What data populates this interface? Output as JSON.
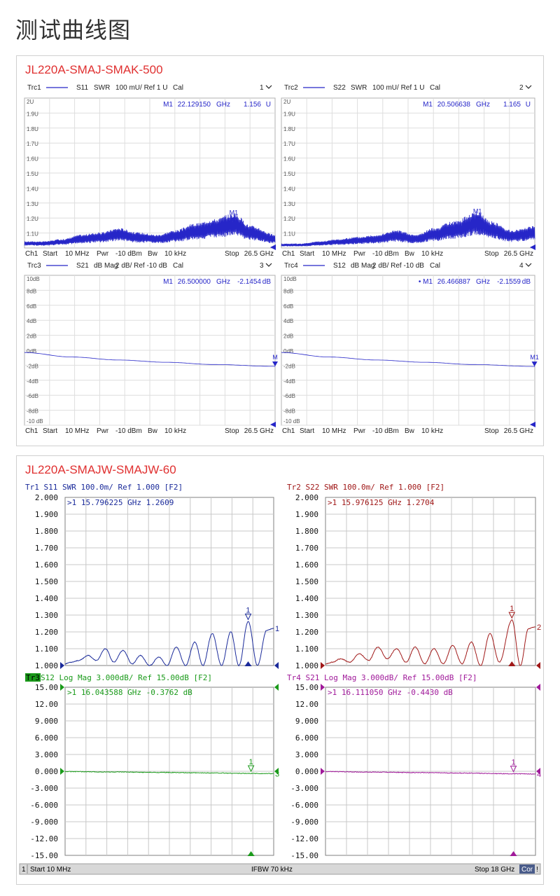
{
  "page_title": "测试曲线图",
  "cards": [
    {
      "title": "JL220A-SMAJ-SMAK-500"
    },
    {
      "title": "JL220A-SMAJW-SMAJW-60"
    }
  ],
  "colors": {
    "trace_blue": "#2626c8",
    "trace_darkblue": "#1a2a9a",
    "trace_red": "#a01818",
    "trace_green": "#1a9a1a",
    "trace_purple": "#a01a9a",
    "title_red": "#e03030"
  },
  "set1": {
    "footer": {
      "ch": "Ch1",
      "start": "Start",
      "start_val": "10 MHz",
      "pwr": "Pwr",
      "pwr_val": "-10 dBm",
      "bw": "Bw",
      "bw_val": "10 kHz",
      "stop": "Stop",
      "stop_val": "26.5 GHz"
    },
    "panels": [
      {
        "trc": "Trc1",
        "param": "S11",
        "fmt": "SWR",
        "scale": "100 mU/ Ref 1 U",
        "cal": "Cal",
        "num": "1",
        "marker_name": "M1",
        "marker_freq": "22.129150",
        "marker_unit": "GHz",
        "marker_val": "1.156",
        "marker_val_unit": "U",
        "marker_label": "M1",
        "ticks": [
          "2U",
          "1.9U",
          "1.8U",
          "1.7U",
          "1.6U",
          "1.5U",
          "1.4U",
          "1.3U",
          "1.2U",
          "1.1U"
        ]
      },
      {
        "trc": "Trc2",
        "param": "S22",
        "fmt": "SWR",
        "scale": "100 mU/ Ref 1 U",
        "cal": "Cal",
        "num": "2",
        "marker_name": "M1",
        "marker_freq": "20.506638",
        "marker_unit": "GHz",
        "marker_val": "1.165",
        "marker_val_unit": "U",
        "marker_label": "M1",
        "ticks": [
          "2U",
          "1.9U",
          "1.8U",
          "1.7U",
          "1.6U",
          "1.5U",
          "1.4U",
          "1.3U",
          "1.2U",
          "1.1U"
        ]
      },
      {
        "trc": "Trc3",
        "param": "S21",
        "fmt": "dB Mag",
        "scale": "2 dB/ Ref -10 dB",
        "cal": "Cal",
        "num": "3",
        "marker_name": "M1",
        "marker_freq": "26.500000",
        "marker_unit": "GHz",
        "marker_val": "-2.1454",
        "marker_val_unit": "dB",
        "marker_label": "M",
        "ticks": [
          "10dB",
          "8dB",
          "6dB",
          "4dB",
          "2dB",
          "0dB",
          "-2dB",
          "-4dB",
          "-6dB",
          "-8dB",
          "-10 dB"
        ]
      },
      {
        "trc": "Trc4",
        "param": "S12",
        "fmt": "dB Mag",
        "scale": "2 dB/ Ref -10 dB",
        "cal": "Cal",
        "num": "4",
        "marker_name": "• M1",
        "marker_freq": "26.466887",
        "marker_unit": "GHz",
        "marker_val": "-2.1559",
        "marker_val_unit": "dB",
        "marker_label": "M1",
        "ticks": [
          "10dB",
          "8dB",
          "6dB",
          "4dB",
          "2dB",
          "0dB",
          "-2dB",
          "-4dB",
          "-6dB",
          "-8dB",
          "-10 dB"
        ]
      }
    ]
  },
  "set2": {
    "status": {
      "num": "1",
      "start": "Start 10 MHz",
      "ifbw": "IFBW 70 kHz",
      "stop": "Stop 18 GHz",
      "cor": "Cor",
      "excl": "!"
    },
    "swr_ticks": [
      "2.000",
      "1.900",
      "1.800",
      "1.700",
      "1.600",
      "1.500",
      "1.400",
      "1.300",
      "1.200",
      "1.100",
      "1.000"
    ],
    "mag_ticks": [
      "15.00",
      "12.00",
      "9.000",
      "6.000",
      "3.000",
      "0.000",
      "-3.000",
      "-6.000",
      "-9.000",
      "-12.00",
      "-15.00"
    ],
    "panels": [
      {
        "header": "Tr1 S11 SWR 100.0m/ Ref 1.000 [F2]",
        "readout": ">1  15.796225 GHz  1.2609",
        "end_label": "1",
        "marker": "1"
      },
      {
        "header": "Tr2 S22 SWR 100.0m/ Ref 1.000 [F2]",
        "readout": ">1  15.976125 GHz  1.2704",
        "end_label": "2",
        "marker": "1"
      },
      {
        "header_tag": "Tr3",
        "header": " S12 Log Mag 3.000dB/ Ref 15.00dB [F2]",
        "readout": ">1  16.043588 GHz -0.3762 dB",
        "end_label": "3",
        "marker": "1"
      },
      {
        "header": "Tr4 S21 Log Mag 3.000dB/ Ref 15.00dB [F2]",
        "readout": ">1  16.111050 GHz -0.4430 dB",
        "end_label": "4",
        "marker": "1"
      }
    ]
  },
  "chart_data": [
    {
      "type": "line",
      "title": "",
      "panel": "Trc1 S11 SWR",
      "xlabel": "",
      "ylabel": "",
      "xlim_ghz": [
        0.01,
        26.5
      ],
      "ylim": [
        1.0,
        2.0
      ],
      "series": [
        {
          "name": "S11",
          "x": [
            0.01,
            2,
            4,
            6,
            8,
            10,
            12,
            14,
            16,
            18,
            20,
            22.13,
            24,
            26.5
          ],
          "y": [
            1.03,
            1.03,
            1.04,
            1.06,
            1.07,
            1.09,
            1.07,
            1.06,
            1.08,
            1.11,
            1.13,
            1.156,
            1.1,
            1.06
          ]
        }
      ],
      "marker": {
        "x": 22.12915,
        "y": 1.156
      }
    },
    {
      "type": "line",
      "title": "",
      "panel": "Trc2 S22 SWR",
      "xlabel": "",
      "ylabel": "",
      "xlim_ghz": [
        0.01,
        26.5
      ],
      "ylim": [
        1.0,
        2.0
      ],
      "series": [
        {
          "name": "S22",
          "x": [
            0.01,
            2,
            4,
            6,
            8,
            10,
            12,
            14,
            16,
            18,
            20.51,
            22,
            24,
            26.5
          ],
          "y": [
            1.02,
            1.02,
            1.03,
            1.04,
            1.05,
            1.06,
            1.08,
            1.06,
            1.09,
            1.12,
            1.165,
            1.12,
            1.08,
            1.1
          ]
        }
      ],
      "marker": {
        "x": 20.506638,
        "y": 1.165
      }
    },
    {
      "type": "line",
      "title": "",
      "panel": "Trc3 S21 dB Mag",
      "xlabel": "",
      "ylabel": "",
      "xlim_ghz": [
        0.01,
        26.5
      ],
      "ylim": [
        -10,
        10
      ],
      "series": [
        {
          "name": "S21",
          "x": [
            0.01,
            5,
            10,
            15,
            20,
            26.5
          ],
          "y": [
            -0.3,
            -0.9,
            -1.3,
            -1.6,
            -1.9,
            -2.1454
          ]
        }
      ],
      "marker": {
        "x": 26.5,
        "y": -2.1454
      }
    },
    {
      "type": "line",
      "title": "",
      "panel": "Trc4 S12 dB Mag",
      "xlabel": "",
      "ylabel": "",
      "xlim_ghz": [
        0.01,
        26.5
      ],
      "ylim": [
        -10,
        10
      ],
      "series": [
        {
          "name": "S12",
          "x": [
            0.01,
            5,
            10,
            15,
            20,
            26.47
          ],
          "y": [
            -0.3,
            -0.9,
            -1.3,
            -1.6,
            -1.9,
            -2.1559
          ]
        }
      ],
      "marker": {
        "x": 26.466887,
        "y": -2.1559
      }
    },
    {
      "type": "line",
      "title": "",
      "panel": "Tr1 S11 SWR",
      "xlabel": "",
      "ylabel": "",
      "xlim_ghz": [
        0.01,
        18
      ],
      "ylim": [
        1.0,
        2.0
      ],
      "series": [
        {
          "name": "S11",
          "x": [
            0.01,
            0.5,
            1.2,
            2.0,
            2.7,
            3.5,
            4.2,
            5.0,
            5.8,
            6.5,
            7.3,
            8.1,
            8.8,
            9.6,
            10.4,
            11.2,
            11.9,
            12.7,
            13.5,
            14.3,
            15.0,
            15.8,
            16.6,
            17.4,
            18.0
          ],
          "y": [
            1.01,
            1.02,
            1.03,
            1.06,
            1.03,
            1.1,
            1.02,
            1.09,
            1.01,
            1.06,
            1.0,
            1.05,
            1.0,
            1.11,
            1.0,
            1.14,
            1.0,
            1.19,
            1.0,
            1.2,
            1.0,
            1.2609,
            1.0,
            1.21,
            1.22
          ]
        }
      ],
      "marker": {
        "x": 15.796225,
        "y": 1.2609
      }
    },
    {
      "type": "line",
      "title": "",
      "panel": "Tr2 S22 SWR",
      "xlabel": "",
      "ylabel": "",
      "xlim_ghz": [
        0.01,
        18
      ],
      "ylim": [
        1.0,
        2.0
      ],
      "series": [
        {
          "name": "S22",
          "x": [
            0.01,
            0.6,
            1.3,
            2.1,
            2.9,
            3.7,
            4.5,
            5.3,
            6.1,
            6.9,
            7.7,
            8.5,
            9.3,
            10.1,
            10.9,
            11.7,
            12.5,
            13.3,
            14.1,
            14.9,
            15.98,
            16.7,
            17.4,
            18.0
          ],
          "y": [
            1.01,
            1.02,
            1.04,
            1.02,
            1.07,
            1.03,
            1.11,
            1.04,
            1.1,
            1.02,
            1.11,
            1.01,
            1.1,
            1.01,
            1.12,
            1.01,
            1.14,
            1.0,
            1.19,
            1.02,
            1.2704,
            1.0,
            1.22,
            1.23
          ]
        }
      ],
      "marker": {
        "x": 15.976125,
        "y": 1.2704
      }
    },
    {
      "type": "line",
      "title": "",
      "panel": "Tr3 S12 Log Mag",
      "xlabel": "",
      "ylabel": "",
      "xlim_ghz": [
        0.01,
        18
      ],
      "ylim": [
        -15,
        15
      ],
      "series": [
        {
          "name": "S12",
          "x": [
            0.01,
            4,
            8,
            12,
            16.04,
            18
          ],
          "y": [
            -0.05,
            -0.12,
            -0.2,
            -0.28,
            -0.3762,
            -0.42
          ]
        }
      ],
      "marker": {
        "x": 16.043588,
        "y": -0.3762
      }
    },
    {
      "type": "line",
      "title": "",
      "panel": "Tr4 S21 Log Mag",
      "xlabel": "",
      "ylabel": "",
      "xlim_ghz": [
        0.01,
        18
      ],
      "ylim": [
        -15,
        15
      ],
      "series": [
        {
          "name": "S21",
          "x": [
            0.01,
            4,
            8,
            12,
            16.11,
            18
          ],
          "y": [
            -0.05,
            -0.14,
            -0.23,
            -0.32,
            -0.443,
            -0.48
          ]
        }
      ],
      "marker": {
        "x": 16.11105,
        "y": -0.443
      }
    }
  ]
}
